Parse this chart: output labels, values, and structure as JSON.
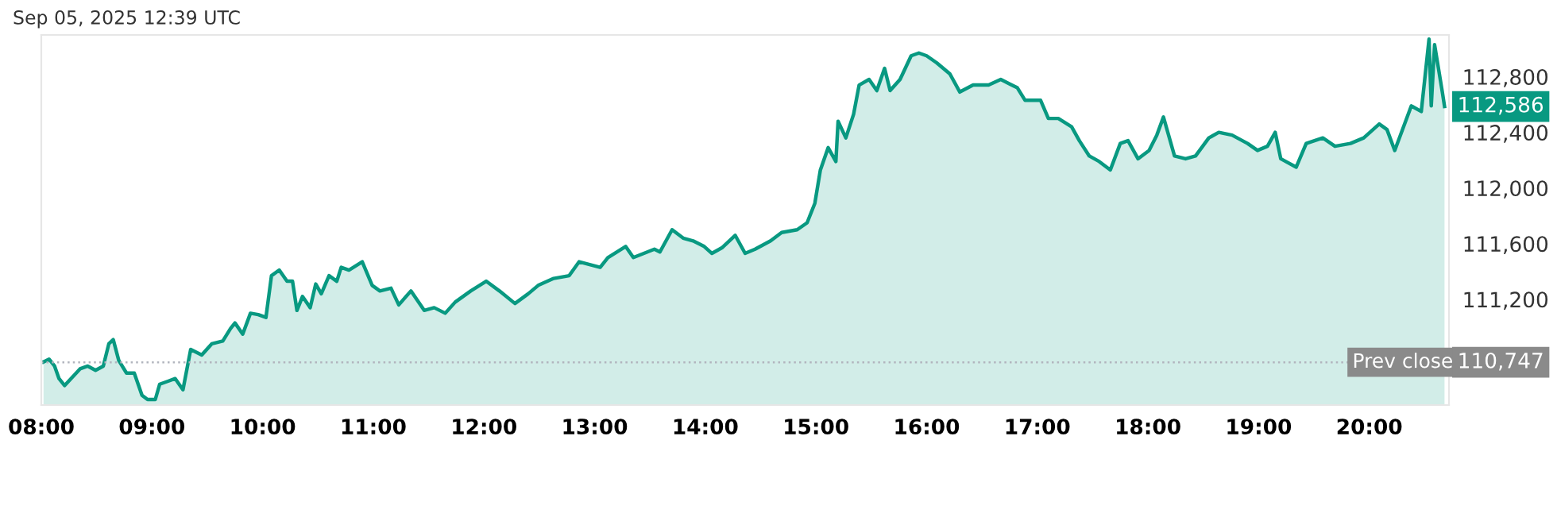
{
  "chart_data": {
    "type": "area",
    "annotations": [
      "Sep 05, 2025 12:39 UTC",
      "112,586",
      "110,747"
    ],
    "x": [
      8.02,
      8.07,
      8.12,
      8.16,
      8.21,
      8.28,
      8.35,
      8.42,
      8.49,
      8.56,
      8.61,
      8.65,
      8.7,
      8.77,
      8.84,
      8.91,
      8.96,
      9.03,
      9.07,
      9.14,
      9.21,
      9.28,
      9.35,
      9.45,
      9.54,
      9.64,
      9.71,
      9.75,
      9.82,
      9.89,
      9.96,
      10.03,
      10.08,
      10.15,
      10.22,
      10.27,
      10.31,
      10.36,
      10.43,
      10.48,
      10.53,
      10.6,
      10.67,
      10.71,
      10.78,
      10.9,
      10.99,
      11.06,
      11.16,
      11.23,
      11.34,
      11.46,
      11.55,
      11.65,
      11.74,
      11.88,
      12.02,
      12.14,
      12.28,
      12.4,
      12.49,
      12.63,
      12.77,
      12.86,
      13.05,
      13.12,
      13.28,
      13.35,
      13.54,
      13.59,
      13.7,
      13.8,
      13.89,
      13.99,
      14.06,
      14.15,
      14.27,
      14.36,
      14.45,
      14.59,
      14.69,
      14.83,
      14.92,
      14.99,
      15.04,
      15.11,
      15.18,
      15.2,
      15.27,
      15.34,
      15.39,
      15.48,
      15.55,
      15.62,
      15.67,
      15.76,
      15.86,
      15.93,
      16.0,
      16.09,
      16.21,
      16.3,
      16.42,
      16.56,
      16.67,
      16.82,
      16.89,
      17.0,
      17.03,
      17.1,
      17.19,
      17.31,
      17.38,
      17.47,
      17.56,
      17.66,
      17.75,
      17.82,
      17.91,
      18.01,
      18.08,
      18.14,
      18.24,
      18.34,
      18.43,
      18.55,
      18.64,
      18.76,
      18.9,
      18.99,
      19.08,
      19.15,
      19.2,
      19.34,
      19.43,
      19.58,
      19.69,
      19.83,
      19.95,
      20.09,
      20.16,
      20.23,
      20.38,
      20.47,
      20.54,
      20.56,
      20.59,
      20.66,
      20.68
    ],
    "series": [
      {
        "color": "#089981",
        "values": [
          110750,
          110770,
          110720,
          110630,
          110580,
          110640,
          110700,
          110720,
          110690,
          110720,
          110880,
          110910,
          110760,
          110670,
          110670,
          110510,
          110480,
          110480,
          110590,
          110610,
          110630,
          110550,
          110840,
          110800,
          110880,
          110900,
          110990,
          111030,
          110950,
          111100,
          111090,
          111070,
          111370,
          111410,
          111330,
          111330,
          111120,
          111220,
          111140,
          111310,
          111240,
          111370,
          111330,
          111430,
          111410,
          111470,
          111300,
          111260,
          111280,
          111160,
          111260,
          111120,
          111140,
          111100,
          111180,
          111260,
          111330,
          111260,
          111170,
          111240,
          111300,
          111350,
          111370,
          111470,
          111430,
          111500,
          111580,
          111500,
          111560,
          111540,
          111700,
          111640,
          111620,
          111580,
          111530,
          111570,
          111660,
          111530,
          111560,
          111620,
          111680,
          111700,
          111750,
          111890,
          112130,
          112290,
          112190,
          112480,
          112360,
          112530,
          112740,
          112780,
          112700,
          112860,
          112700,
          112780,
          112950,
          112970,
          112950,
          112900,
          112820,
          112690,
          112740,
          112740,
          112780,
          112720,
          112630,
          112630,
          112630,
          112500,
          112500,
          112440,
          112340,
          112230,
          112190,
          112130,
          112320,
          112340,
          112210,
          112270,
          112380,
          112510,
          112230,
          112210,
          112230,
          112360,
          112400,
          112380,
          112320,
          112270,
          112300,
          112400,
          112210,
          112150,
          112320,
          112360,
          112300,
          112320,
          112360,
          112460,
          112420,
          112270,
          112590,
          112550,
          113070,
          112590,
          113030,
          112690,
          112586
        ]
      }
    ],
    "xlim": [
      8.0,
      20.72
    ],
    "xticks": [
      {
        "value": 8,
        "label": "08:00"
      },
      {
        "value": 9,
        "label": "09:00"
      },
      {
        "value": 10,
        "label": "10:00"
      },
      {
        "value": 11,
        "label": "11:00"
      },
      {
        "value": 12,
        "label": "12:00"
      },
      {
        "value": 13,
        "label": "13:00"
      },
      {
        "value": 14,
        "label": "14:00"
      },
      {
        "value": 15,
        "label": "15:00"
      },
      {
        "value": 16,
        "label": "16:00"
      },
      {
        "value": 17,
        "label": "17:00"
      },
      {
        "value": 18,
        "label": "18:00"
      },
      {
        "value": 19,
        "label": "19:00"
      },
      {
        "value": 20,
        "label": "20:00"
      }
    ],
    "ylim": [
      110440,
      113100
    ],
    "yticks": [
      {
        "value": 111200,
        "label": "111,200"
      },
      {
        "value": 111600,
        "label": "111,600"
      },
      {
        "value": 112000,
        "label": "112,000"
      },
      {
        "value": 112400,
        "label": "112,400"
      },
      {
        "value": 112800,
        "label": "112,800"
      }
    ],
    "ref_lines": [
      {
        "axis": "y",
        "value": 110747,
        "label": "Prev close",
        "color": "#b2b5be",
        "line_style": "dotted"
      }
    ],
    "grid": false,
    "legend": false
  }
}
